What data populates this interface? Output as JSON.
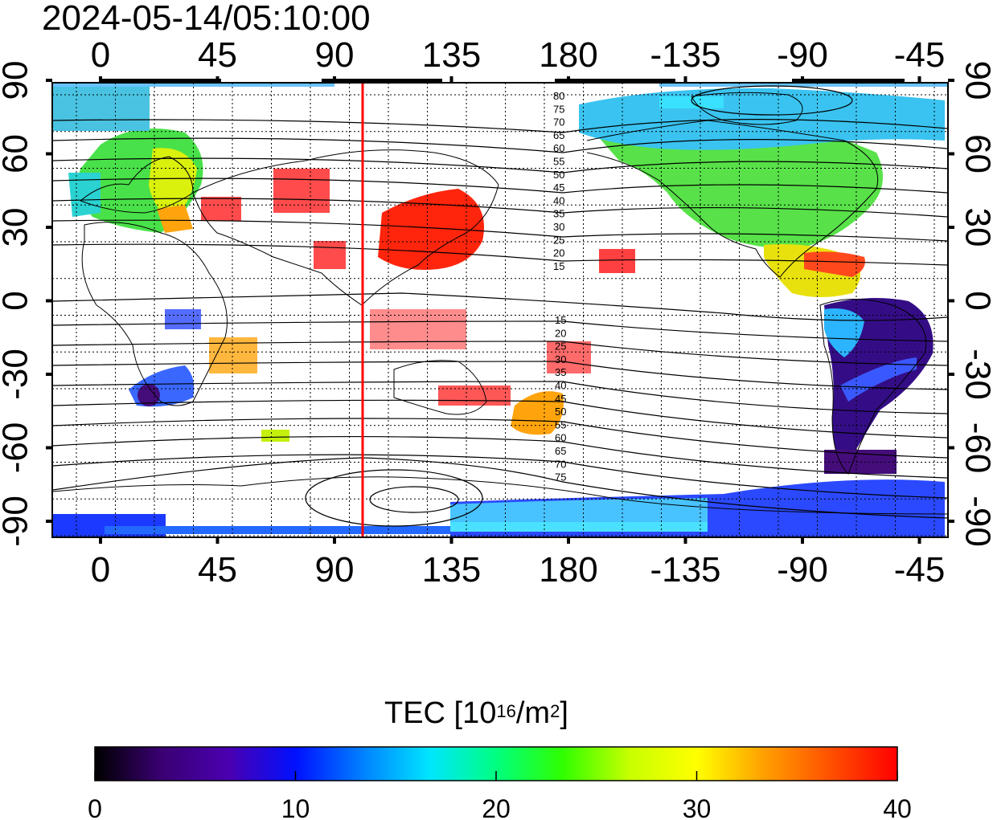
{
  "timestamp": "2024-05-14/05:10:00",
  "map": {
    "top_lon_ticks": [
      "0",
      "45",
      "90",
      "135",
      "180",
      "-135",
      "-90",
      "-45"
    ],
    "bottom_lon_ticks": [
      "0",
      "45",
      "90",
      "135",
      "180",
      "-135",
      "-90",
      "-45"
    ],
    "left_lat_ticks": [
      "90",
      "60",
      "30",
      "0",
      "-30",
      "-60",
      "-90"
    ],
    "right_lat_ticks": [
      "90",
      "60",
      "30",
      "0",
      "-30",
      "-60",
      "-90"
    ],
    "meridian_line_color": "#ff0000",
    "contour_labels_north": [
      "80",
      "75",
      "70",
      "65",
      "60",
      "55",
      "50",
      "45",
      "40",
      "35",
      "30",
      "25",
      "20",
      "15"
    ],
    "contour_labels_south": [
      "15",
      "20",
      "25",
      "30",
      "35",
      "40",
      "45",
      "50",
      "55",
      "60",
      "65",
      "70",
      "75"
    ]
  },
  "colorbar": {
    "title_main": "TEC  [10",
    "title_exp": "16",
    "title_unit": "/m",
    "title_unit_exp": "2",
    "title_close": "]",
    "ticks": [
      "0",
      "10",
      "20",
      "30",
      "40"
    ],
    "range": [
      0,
      40
    ],
    "colors": [
      "#000000",
      "#3a0073",
      "#4a00b0",
      "#0010ff",
      "#0080ff",
      "#00e5ff",
      "#00ff80",
      "#30ff00",
      "#c8ff00",
      "#ffff00",
      "#ffa000",
      "#ff5000",
      "#ff0000"
    ]
  }
}
